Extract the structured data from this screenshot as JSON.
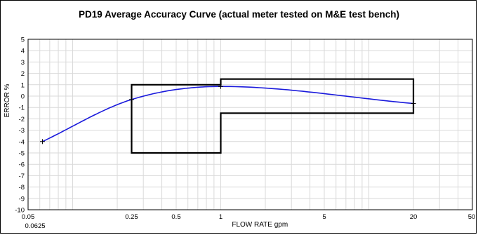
{
  "chart_data": {
    "type": "line",
    "title": "PD19 Average Accuracy Curve (actual meter tested on M&E test bench)",
    "xlabel": "FLOW RATE gpm",
    "ylabel": "ERROR %",
    "x_scale": "log",
    "xlim": [
      0.05,
      50
    ],
    "ylim": [
      -10,
      5
    ],
    "x_ticks": [
      {
        "value": 0.05,
        "label": "0.05"
      },
      {
        "value": 0.0625,
        "label": "0.0625"
      },
      {
        "value": 0.25,
        "label": "0.25"
      },
      {
        "value": 0.5,
        "label": "0.5"
      },
      {
        "value": 1,
        "label": "1"
      },
      {
        "value": 5,
        "label": "5"
      },
      {
        "value": 20,
        "label": "20"
      },
      {
        "value": 50,
        "label": "50"
      }
    ],
    "y_ticks": [
      5,
      4,
      3,
      2,
      1,
      0,
      -1,
      -2,
      -3,
      -4,
      -5,
      -6,
      -7,
      -8,
      -9,
      -10
    ],
    "grid": true,
    "series": [
      {
        "color": "#1a1adc",
        "points": [
          {
            "x": 0.0625,
            "y": -4.0
          },
          {
            "x": 0.25,
            "y": -0.3
          },
          {
            "x": 1,
            "y": 0.85
          },
          {
            "x": 20,
            "y": -0.65
          }
        ]
      }
    ],
    "accuracy_envelope": {
      "color": "#000000",
      "upper": [
        {
          "x": 0.25,
          "y": 1
        },
        {
          "x": 1,
          "y": 1
        },
        {
          "x": 1,
          "y": 1.5
        },
        {
          "x": 20,
          "y": 1.5
        }
      ],
      "lower": [
        {
          "x": 0.25,
          "y": -5
        },
        {
          "x": 1,
          "y": -5
        },
        {
          "x": 1,
          "y": -1.5
        },
        {
          "x": 20,
          "y": -1.5
        }
      ]
    }
  }
}
